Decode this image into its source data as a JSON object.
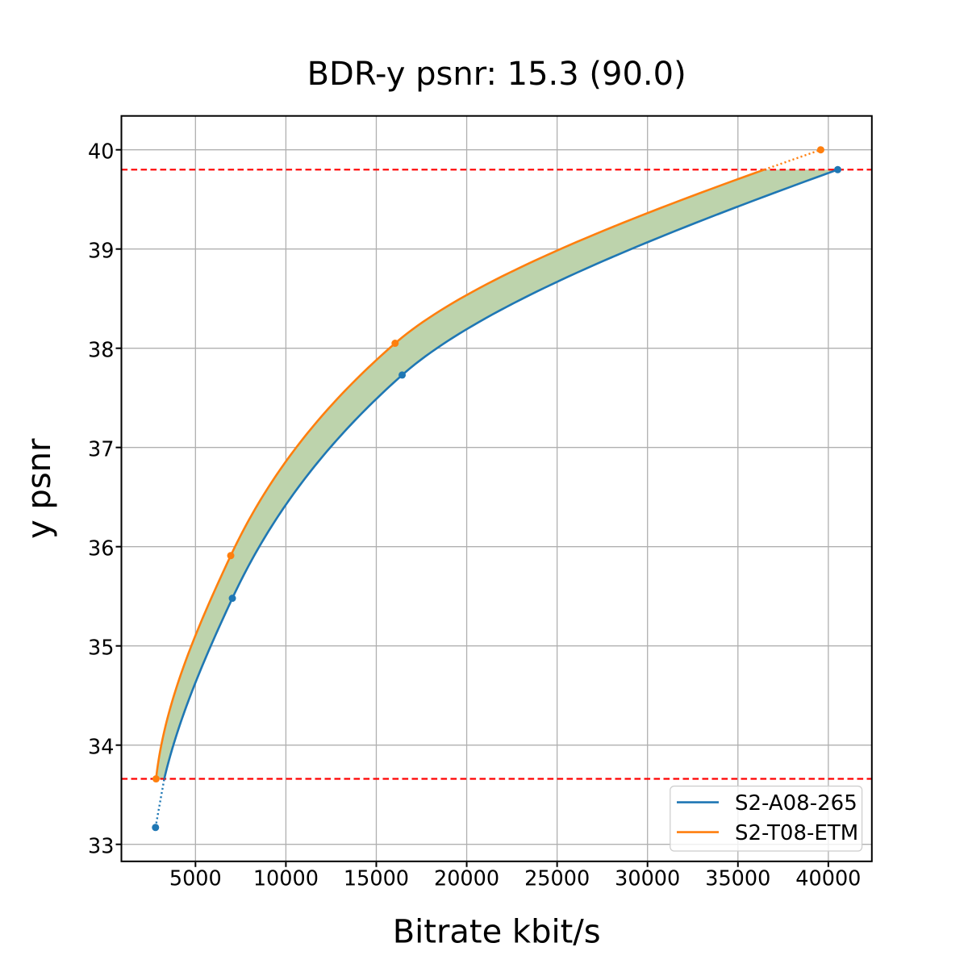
{
  "title": "BDR-y psnr: 15.3 (90.0)",
  "chart_data": {
    "type": "line",
    "title": "BDR-y psnr: 15.3 (90.0)",
    "xlabel": "Bitrate kbit/s",
    "ylabel": "y psnr",
    "x_ticks": [
      5000,
      10000,
      15000,
      20000,
      25000,
      30000,
      35000,
      40000
    ],
    "y_ticks": [
      33,
      34,
      35,
      36,
      37,
      38,
      39,
      40
    ],
    "xlim": [
      904,
      42406
    ],
    "ylim": [
      32.83,
      40.34
    ],
    "grid": true,
    "grid_color": "#b0b0b0",
    "background": "#ffffff",
    "series": [
      {
        "name": "S2-A08-265",
        "color": "#1f77b4",
        "marker": "circle",
        "bitrate": [
          2790,
          7040,
          16430,
          40520
        ],
        "psnr": [
          33.17,
          35.48,
          37.73,
          39.8
        ]
      },
      {
        "name": "S2-T08-ETM",
        "color": "#ff7f0e",
        "marker": "circle",
        "bitrate": [
          2820,
          6950,
          16040,
          39580
        ],
        "psnr": [
          33.66,
          35.91,
          38.05,
          40.0
        ]
      }
    ],
    "overlap_psnr": [
      33.66,
      39.8
    ],
    "overlap_line_color": "#ff0000",
    "overlap_line_style": "dashed",
    "fill_between_color": "#bdd3ac",
    "legend_position": "lower right"
  },
  "legend": {
    "entries": [
      {
        "label": "S2-A08-265",
        "color": "#1f77b4"
      },
      {
        "label": "S2-T08-ETM",
        "color": "#ff7f0e"
      }
    ]
  }
}
